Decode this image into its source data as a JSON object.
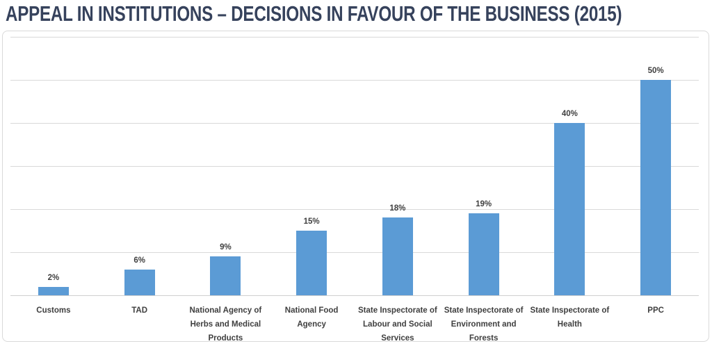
{
  "chart_data": {
    "type": "bar",
    "title": "APPEAL IN INSTITUTIONS – DECISIONS IN FAVOUR OF THE BUSINESS (2015)",
    "categories": [
      "Customs",
      "TAD",
      "National Agency of\nHerbs and Medical\nProducts",
      "National Food\nAgency",
      "State Inspectorate of\nLabour and Social\nServices",
      "State Inspectorate of\nEnvironment and\nForests",
      "State Inspectorate of\nHealth",
      "PPC"
    ],
    "values": [
      2,
      6,
      9,
      15,
      18,
      19,
      40,
      50
    ],
    "data_labels": [
      "2%",
      "6%",
      "9%",
      "15%",
      "18%",
      "19%",
      "40%",
      "50%"
    ],
    "xlabel": "",
    "ylabel": "",
    "ylim": [
      0,
      60
    ],
    "gridline_step": 10,
    "grid": true,
    "legend": "none",
    "y_axis_tick_labels_visible": false,
    "colors": {
      "bar": "#5B9BD5",
      "title": "#36425C",
      "labels": "#3F3F3F",
      "gridline": "#D9D9D9",
      "frame_border": "#D9D9D9",
      "background": "#FFFFFF"
    }
  }
}
